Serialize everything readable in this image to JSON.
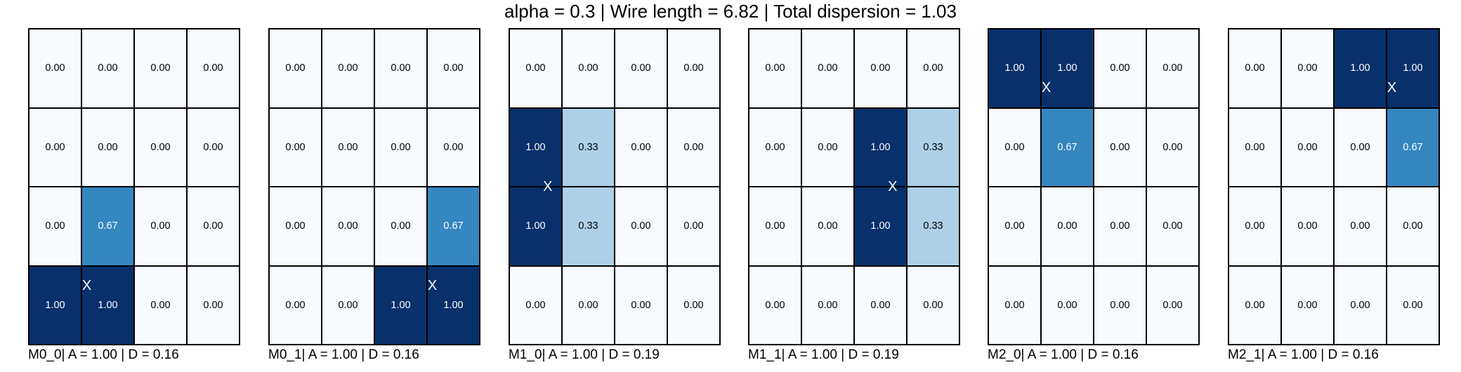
{
  "title": "alpha = 0.3 | Wire length = 6.82 | Total dispersion = 1.03",
  "colors": {
    "scale": [
      "#f7fbff",
      "#deebf7",
      "#c6dbef",
      "#9ecae1",
      "#6baed6",
      "#4292c6",
      "#2171b5",
      "#08519c",
      "#08306b"
    ],
    "cell_border": "#000000",
    "marker": "#ffffff"
  },
  "chart_data": [
    {
      "type": "heatmap",
      "label": "M0_0| A = 1.00 | D = 0.16",
      "values": [
        [
          0.0,
          0.0,
          0.0,
          0.0
        ],
        [
          0.0,
          0.0,
          0.0,
          0.0
        ],
        [
          0.0,
          0.67,
          0.0,
          0.0
        ],
        [
          1.0,
          1.0,
          0.0,
          0.0
        ]
      ],
      "value_labels": [
        [
          "0.00",
          "0.00",
          "0.00",
          "0.00"
        ],
        [
          "0.00",
          "0.00",
          "0.00",
          "0.00"
        ],
        [
          "0.00",
          "0.67",
          "0.00",
          "0.00"
        ],
        [
          "1.00",
          "1.00",
          "0.00",
          "0.00"
        ]
      ],
      "marker": {
        "text": "X",
        "col": 1.1,
        "row": 3.25
      }
    },
    {
      "type": "heatmap",
      "label": "M0_1| A = 1.00 | D = 0.16",
      "values": [
        [
          0.0,
          0.0,
          0.0,
          0.0
        ],
        [
          0.0,
          0.0,
          0.0,
          0.0
        ],
        [
          0.0,
          0.0,
          0.0,
          0.67
        ],
        [
          0.0,
          0.0,
          1.0,
          1.0
        ]
      ],
      "value_labels": [
        [
          "0.00",
          "0.00",
          "0.00",
          "0.00"
        ],
        [
          "0.00",
          "0.00",
          "0.00",
          "0.00"
        ],
        [
          "0.00",
          "0.00",
          "0.00",
          "0.67"
        ],
        [
          "0.00",
          "0.00",
          "1.00",
          "1.00"
        ]
      ],
      "marker": {
        "text": "X",
        "col": 3.1,
        "row": 3.25
      }
    },
    {
      "type": "heatmap",
      "label": "M1_0| A = 1.00 | D = 0.19",
      "values": [
        [
          0.0,
          0.0,
          0.0,
          0.0
        ],
        [
          1.0,
          0.33,
          0.0,
          0.0
        ],
        [
          1.0,
          0.33,
          0.0,
          0.0
        ],
        [
          0.0,
          0.0,
          0.0,
          0.0
        ]
      ],
      "value_labels": [
        [
          "0.00",
          "0.00",
          "0.00",
          "0.00"
        ],
        [
          "1.00",
          "0.33",
          "0.00",
          "0.00"
        ],
        [
          "1.00",
          "0.33",
          "0.00",
          "0.00"
        ],
        [
          "0.00",
          "0.00",
          "0.00",
          "0.00"
        ]
      ],
      "marker": {
        "text": "X",
        "col": 0.73,
        "row": 2.0
      }
    },
    {
      "type": "heatmap",
      "label": "M1_1| A = 1.00 | D = 0.19",
      "values": [
        [
          0.0,
          0.0,
          0.0,
          0.0
        ],
        [
          0.0,
          0.0,
          1.0,
          0.33
        ],
        [
          0.0,
          0.0,
          1.0,
          0.33
        ],
        [
          0.0,
          0.0,
          0.0,
          0.0
        ]
      ],
      "value_labels": [
        [
          "0.00",
          "0.00",
          "0.00",
          "0.00"
        ],
        [
          "0.00",
          "0.00",
          "1.00",
          "0.33"
        ],
        [
          "0.00",
          "0.00",
          "1.00",
          "0.33"
        ],
        [
          "0.00",
          "0.00",
          "0.00",
          "0.00"
        ]
      ],
      "marker": {
        "text": "X",
        "col": 2.73,
        "row": 2.0
      }
    },
    {
      "type": "heatmap",
      "label": "M2_0| A = 1.00 | D = 0.16",
      "values": [
        [
          1.0,
          1.0,
          0.0,
          0.0
        ],
        [
          0.0,
          0.67,
          0.0,
          0.0
        ],
        [
          0.0,
          0.0,
          0.0,
          0.0
        ],
        [
          0.0,
          0.0,
          0.0,
          0.0
        ]
      ],
      "value_labels": [
        [
          "1.00",
          "1.00",
          "0.00",
          "0.00"
        ],
        [
          "0.00",
          "0.67",
          "0.00",
          "0.00"
        ],
        [
          "0.00",
          "0.00",
          "0.00",
          "0.00"
        ],
        [
          "0.00",
          "0.00",
          "0.00",
          "0.00"
        ]
      ],
      "marker": {
        "text": "X",
        "col": 1.1,
        "row": 0.75
      }
    },
    {
      "type": "heatmap",
      "label": "M2_1| A = 1.00 | D = 0.16",
      "values": [
        [
          0.0,
          0.0,
          1.0,
          1.0
        ],
        [
          0.0,
          0.0,
          0.0,
          0.67
        ],
        [
          0.0,
          0.0,
          0.0,
          0.0
        ],
        [
          0.0,
          0.0,
          0.0,
          0.0
        ]
      ],
      "value_labels": [
        [
          "0.00",
          "0.00",
          "1.00",
          "1.00"
        ],
        [
          "0.00",
          "0.00",
          "0.00",
          "0.67"
        ],
        [
          "0.00",
          "0.00",
          "0.00",
          "0.00"
        ],
        [
          "0.00",
          "0.00",
          "0.00",
          "0.00"
        ]
      ],
      "marker": {
        "text": "X",
        "col": 3.1,
        "row": 0.75
      }
    }
  ]
}
